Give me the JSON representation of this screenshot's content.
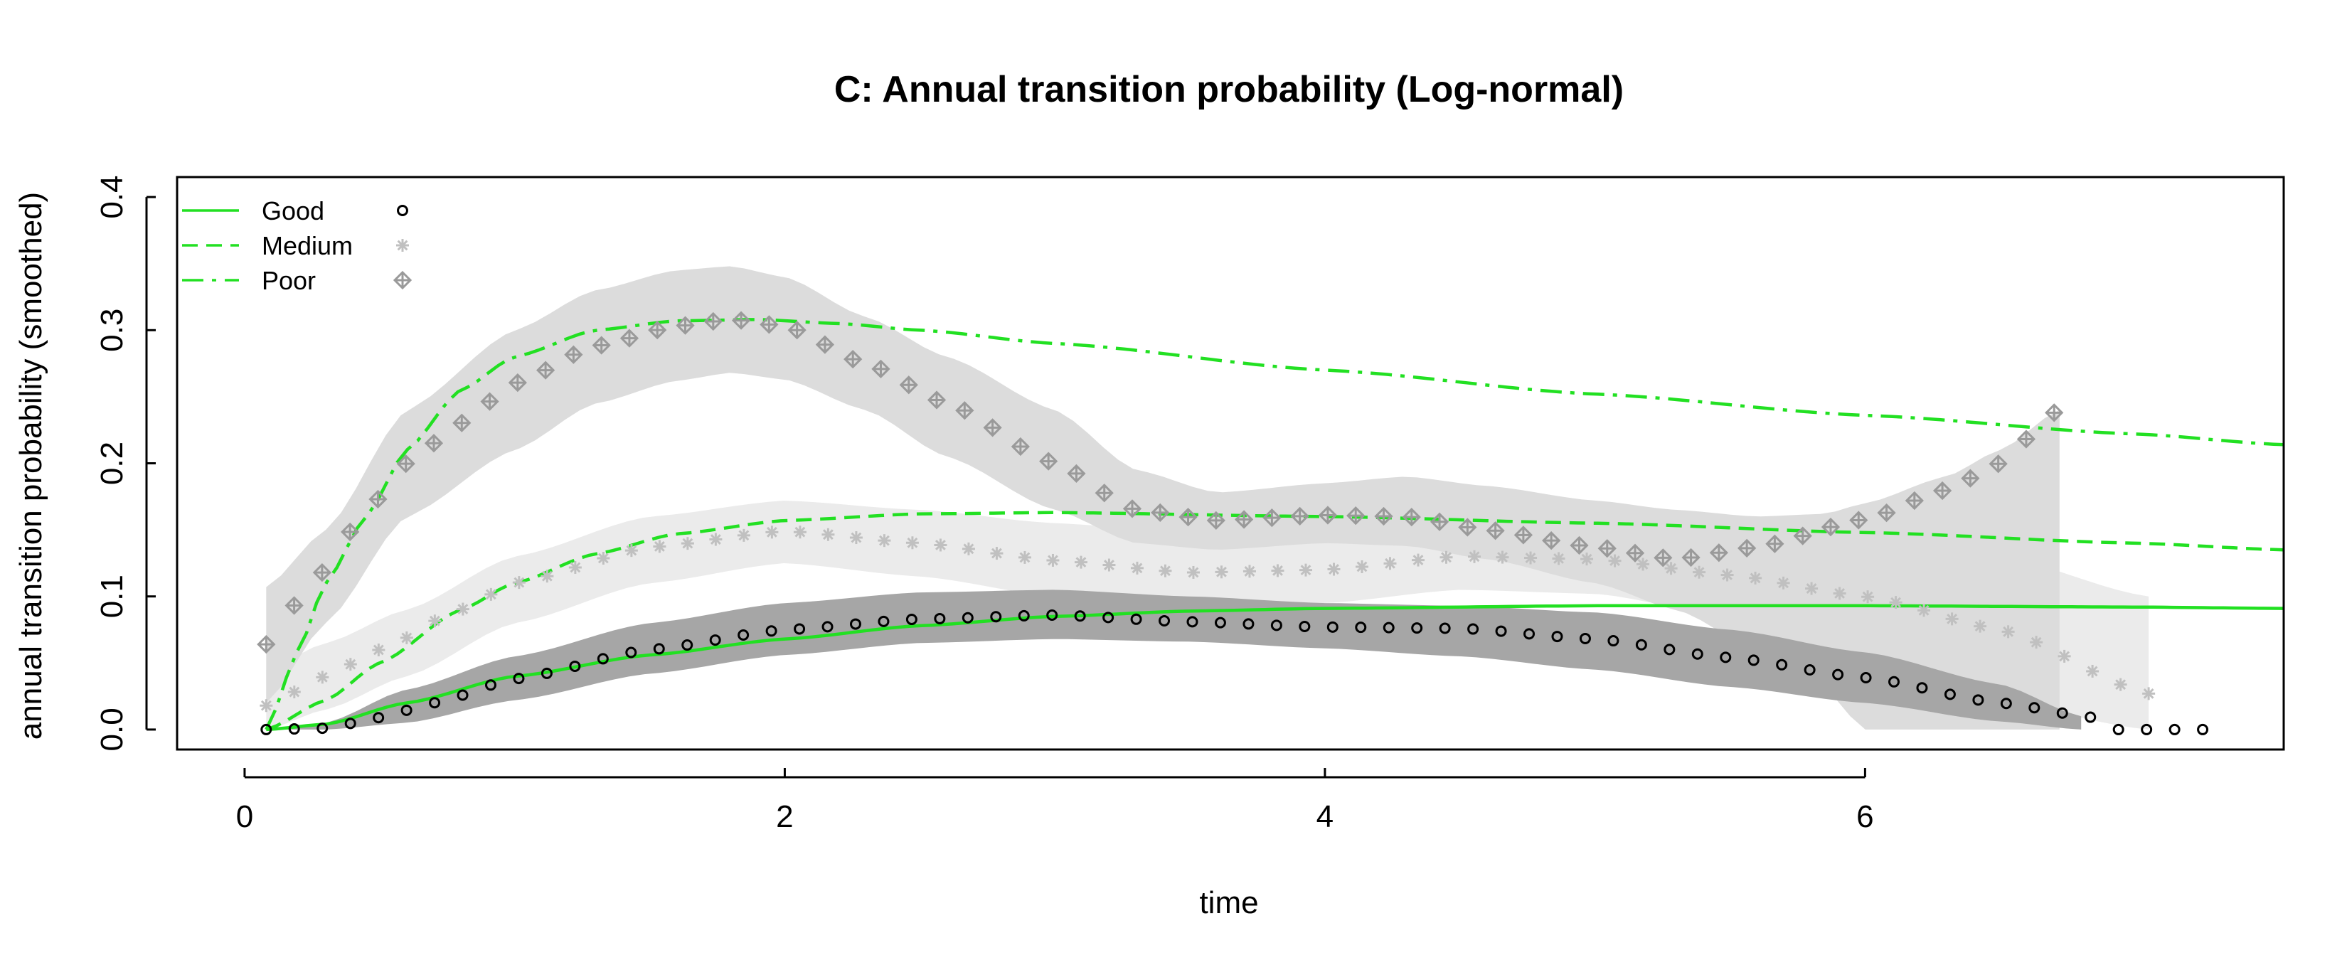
{
  "chart_data": {
    "type": "line",
    "title": "C: Annual transition probability (Log-normal)",
    "xlabel": "time",
    "ylabel": "annual transition probability (smoothed)",
    "xlim": [
      -0.25,
      7.55
    ],
    "ylim": [
      -0.015,
      0.415
    ],
    "x_ticks": [
      0,
      2,
      4,
      6
    ],
    "y_ticks": [
      0.0,
      0.1,
      0.2,
      0.3,
      0.4
    ],
    "x_tick_labels": [
      "0",
      "2",
      "4",
      "6"
    ],
    "y_tick_labels": [
      "0.0",
      "0.1",
      "0.2",
      "0.3",
      "0.4"
    ],
    "legend_position": "top-left",
    "grid": false,
    "legend": [
      {
        "label": "Good",
        "line": "solid",
        "marker": "circle"
      },
      {
        "label": "Medium",
        "line": "dashed",
        "marker": "asterisk"
      },
      {
        "label": "Poor",
        "line": "dash-dot",
        "marker": "diamond-plus"
      }
    ],
    "colors": {
      "fitted_line": "#22e022",
      "good_points": "#000000",
      "medium_points": "#c0c0c0",
      "poor_points": "#9a9a9a",
      "good_band": "#a6a6a6",
      "medium_band": "#ebebeb",
      "poor_band": "#dcdcdc"
    },
    "fitted_lines": [
      {
        "name": "Good",
        "style": "solid",
        "x": [
          0.08,
          0.3,
          0.6,
          1.0,
          1.5,
          2.0,
          2.5,
          3.0,
          3.5,
          4.0,
          5.0,
          6.0,
          7.0,
          7.55
        ],
        "y": [
          0.0,
          0.004,
          0.02,
          0.04,
          0.056,
          0.068,
          0.078,
          0.085,
          0.089,
          0.091,
          0.093,
          0.093,
          0.092,
          0.091
        ]
      },
      {
        "name": "Medium",
        "style": "dashed",
        "x": [
          0.08,
          0.3,
          0.5,
          0.8,
          1.0,
          1.3,
          1.6,
          2.0,
          2.5,
          3.0,
          4.0,
          5.0,
          6.0,
          7.0,
          7.55
        ],
        "y": [
          0.0,
          0.022,
          0.05,
          0.09,
          0.11,
          0.132,
          0.147,
          0.157,
          0.162,
          0.163,
          0.16,
          0.155,
          0.148,
          0.14,
          0.135
        ]
      },
      {
        "name": "Poor",
        "style": "dash-dot",
        "x": [
          0.08,
          0.2,
          0.3,
          0.45,
          0.6,
          0.8,
          1.0,
          1.3,
          1.6,
          1.9,
          2.2,
          2.5,
          3.0,
          4.0,
          5.0,
          6.0,
          7.0,
          7.55
        ],
        "y": [
          0.0,
          0.06,
          0.11,
          0.16,
          0.21,
          0.255,
          0.28,
          0.3,
          0.307,
          0.308,
          0.305,
          0.3,
          0.29,
          0.27,
          0.252,
          0.236,
          0.222,
          0.214
        ]
      }
    ],
    "points": [
      {
        "name": "Good",
        "marker": "circle",
        "knots_x": [
          0.08,
          0.3,
          0.5,
          0.7,
          1.0,
          1.5,
          2.0,
          2.5,
          3.0,
          3.5,
          4.0,
          4.5,
          5.0,
          5.5,
          6.0,
          6.5,
          6.85,
          6.9,
          7.25
        ],
        "knots_y": [
          0.0,
          0.001,
          0.009,
          0.02,
          0.038,
          0.06,
          0.075,
          0.083,
          0.086,
          0.081,
          0.077,
          0.076,
          0.068,
          0.054,
          0.039,
          0.02,
          0.009,
          0.0,
          0.0
        ],
        "x_start": 0.08,
        "x_end": 7.25,
        "count": 70
      },
      {
        "name": "Medium",
        "marker": "asterisk",
        "knots_x": [
          0.08,
          0.3,
          0.5,
          0.8,
          1.0,
          1.5,
          2.0,
          2.5,
          3.0,
          3.5,
          4.0,
          4.5,
          5.0,
          5.5,
          6.0,
          6.5,
          7.05
        ],
        "knots_y": [
          0.018,
          0.04,
          0.06,
          0.09,
          0.11,
          0.137,
          0.149,
          0.14,
          0.127,
          0.118,
          0.12,
          0.13,
          0.128,
          0.116,
          0.1,
          0.075,
          0.027
        ],
        "x_start": 0.08,
        "x_end": 7.05,
        "count": 68
      },
      {
        "name": "Poor",
        "marker": "diamond-plus",
        "knots_x": [
          0.08,
          0.25,
          0.4,
          0.6,
          0.8,
          1.0,
          1.3,
          1.6,
          1.8,
          2.0,
          2.3,
          2.6,
          3.0,
          3.3,
          3.6,
          4.0,
          4.3,
          4.6,
          5.0,
          5.3,
          5.6,
          6.0,
          6.3,
          6.5,
          6.7
        ],
        "knots_y": [
          0.064,
          0.11,
          0.15,
          0.2,
          0.23,
          0.26,
          0.288,
          0.303,
          0.308,
          0.303,
          0.275,
          0.245,
          0.2,
          0.165,
          0.157,
          0.161,
          0.16,
          0.15,
          0.137,
          0.128,
          0.137,
          0.158,
          0.18,
          0.2,
          0.238
        ],
        "x_start": 0.08,
        "x_end": 6.7,
        "count": 65
      }
    ],
    "confidence_bands": [
      {
        "name": "Medium",
        "x": [
          0.08,
          0.3,
          0.6,
          1.0,
          1.5,
          2.0,
          2.5,
          3.0,
          3.5,
          4.0,
          4.5,
          5.0,
          5.5,
          6.0,
          6.5,
          7.05
        ],
        "lower": [
          0.0,
          0.015,
          0.04,
          0.08,
          0.11,
          0.125,
          0.115,
          0.1,
          0.09,
          0.095,
          0.105,
          0.102,
          0.085,
          0.06,
          0.02,
          0.0
        ],
        "upper": [
          0.045,
          0.065,
          0.09,
          0.13,
          0.16,
          0.172,
          0.165,
          0.155,
          0.148,
          0.15,
          0.157,
          0.155,
          0.148,
          0.14,
          0.13,
          0.1
        ]
      },
      {
        "name": "Poor",
        "x": [
          0.08,
          0.3,
          0.6,
          1.0,
          1.3,
          1.6,
          1.8,
          2.0,
          2.3,
          2.6,
          3.0,
          3.3,
          3.6,
          4.0,
          4.3,
          4.6,
          5.0,
          5.3,
          5.6,
          5.85,
          6.0,
          6.3,
          6.5,
          6.72
        ],
        "lower": [
          0.02,
          0.08,
          0.16,
          0.21,
          0.245,
          0.262,
          0.268,
          0.263,
          0.24,
          0.205,
          0.165,
          0.14,
          0.135,
          0.14,
          0.138,
          0.128,
          0.11,
          0.09,
          0.06,
          0.03,
          0.0,
          0.0,
          0.0,
          0.0
        ],
        "upper": [
          0.107,
          0.15,
          0.24,
          0.3,
          0.33,
          0.345,
          0.348,
          0.34,
          0.31,
          0.28,
          0.24,
          0.195,
          0.178,
          0.185,
          0.19,
          0.183,
          0.172,
          0.165,
          0.16,
          0.162,
          0.17,
          0.19,
          0.21,
          0.24
        ]
      },
      {
        "name": "Good",
        "x": [
          0.08,
          0.3,
          0.6,
          1.0,
          1.5,
          2.0,
          2.5,
          3.0,
          3.5,
          4.0,
          4.5,
          5.0,
          5.5,
          6.0,
          6.5,
          6.8
        ],
        "lower": [
          0.0,
          0.0,
          0.005,
          0.022,
          0.042,
          0.056,
          0.065,
          0.068,
          0.066,
          0.061,
          0.055,
          0.045,
          0.032,
          0.02,
          0.006,
          0.0
        ],
        "upper": [
          0.0,
          0.005,
          0.03,
          0.055,
          0.08,
          0.095,
          0.103,
          0.105,
          0.1,
          0.095,
          0.093,
          0.088,
          0.075,
          0.058,
          0.034,
          0.01
        ]
      }
    ]
  }
}
